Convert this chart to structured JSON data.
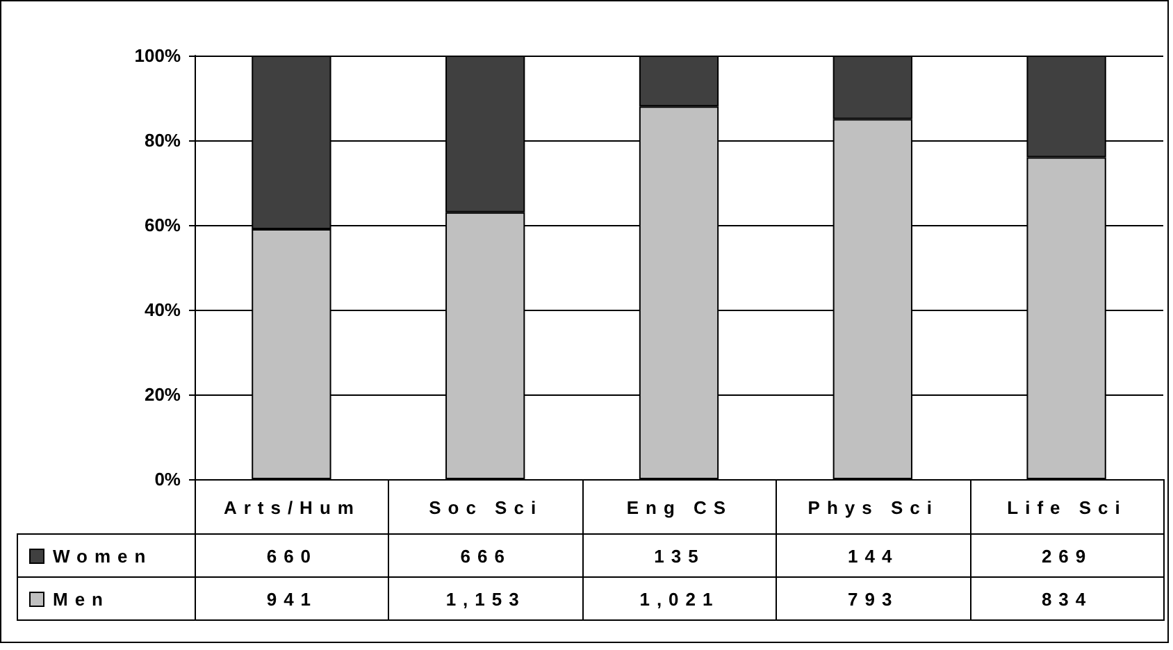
{
  "chart_data": {
    "type": "bar",
    "stacked": true,
    "categories": [
      "Arts/Hum",
      "Soc Sci",
      "Eng CS",
      "Phys Sci",
      "Life Sci"
    ],
    "series": [
      {
        "name": "Men",
        "color": "#c0c0c0",
        "values": [
          59,
          63,
          88,
          85,
          76
        ]
      },
      {
        "name": "Women",
        "color": "#404040",
        "values": [
          41,
          37,
          12,
          15,
          24
        ]
      }
    ],
    "annotations": [
      "660",
      "666",
      "135",
      "144",
      "269",
      "941",
      "1,153",
      "1,021",
      "793",
      "834"
    ],
    "ylim": [
      0,
      100
    ],
    "yticks": [
      {
        "value": 0,
        "label": "0%"
      },
      {
        "value": 20,
        "label": "20%"
      },
      {
        "value": 40,
        "label": "40%"
      },
      {
        "value": 60,
        "label": "60%"
      },
      {
        "value": 80,
        "label": "80%"
      },
      {
        "value": 100,
        "label": "100%"
      }
    ],
    "grid": "y",
    "legend": "bottom left"
  }
}
